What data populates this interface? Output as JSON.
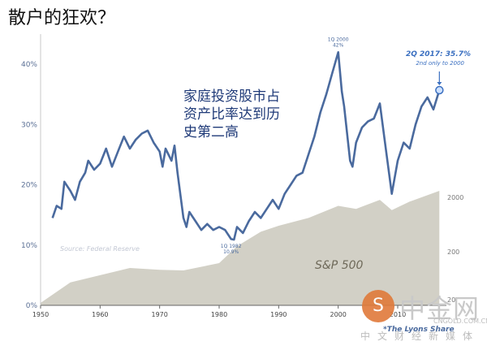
{
  "title": "散户的狂欢？",
  "annotation": [
    "家庭投资股市占",
    "资产比率达到历",
    "史第二高"
  ],
  "watermark": {
    "logo_char": "S",
    "name": "中金网",
    "url": "CNGOLD.COM.CN",
    "subtitle": "中文财经新媒体"
  },
  "chart_data": {
    "type": "line",
    "xlim": [
      1950,
      2017.5
    ],
    "x_ticks": [
      1950,
      1960,
      1970,
      1980,
      1990,
      2000,
      2010
    ],
    "ylim": [
      0,
      45
    ],
    "y_ticks": [
      {
        "v": 0,
        "label": "0%"
      },
      {
        "v": 10,
        "label": "10%"
      },
      {
        "v": 20,
        "label": "20%"
      },
      {
        "v": 30,
        "label": "30%"
      },
      {
        "v": 40,
        "label": "40%"
      }
    ],
    "y2_ticks": [
      {
        "v": 2000,
        "label": "2000"
      },
      {
        "v": 200,
        "label": "200"
      },
      {
        "v": 20,
        "label": "20"
      }
    ],
    "source": "Source: Federal Reserve",
    "credit": "*The Lyons Share",
    "colors": {
      "line": "#4a6a9e",
      "area": "#d2d0c6",
      "axis": "#666666",
      "source": "#c3c8d4",
      "highlight": "#3a6fc0"
    },
    "series": [
      {
        "name": "",
        "values": [
          [
            1952,
            14.5
          ],
          [
            1952.7,
            16.5
          ],
          [
            1953.5,
            16
          ],
          [
            1954,
            20.5
          ],
          [
            1955,
            19
          ],
          [
            1955.8,
            17.5
          ],
          [
            1956.6,
            20.5
          ],
          [
            1957.5,
            22
          ],
          [
            1958,
            24
          ],
          [
            1959,
            22.5
          ],
          [
            1960,
            23.5
          ],
          [
            1961,
            26
          ],
          [
            1962,
            23
          ],
          [
            1963,
            25.5
          ],
          [
            1964,
            28
          ],
          [
            1965,
            26
          ],
          [
            1966,
            27.5
          ],
          [
            1967,
            28.5
          ],
          [
            1968,
            29
          ],
          [
            1969,
            27
          ],
          [
            1970,
            25.5
          ],
          [
            1970.5,
            23
          ],
          [
            1971,
            26
          ],
          [
            1972,
            24
          ],
          [
            1972.5,
            26.5
          ],
          [
            1973,
            22
          ],
          [
            1974,
            14.5
          ],
          [
            1974.5,
            13
          ],
          [
            1975,
            15.5
          ],
          [
            1976,
            14
          ],
          [
            1977,
            12.5
          ],
          [
            1978,
            13.5
          ],
          [
            1979,
            12.5
          ],
          [
            1980,
            13
          ],
          [
            1981,
            12.5
          ],
          [
            1982,
            11
          ],
          [
            1982.5,
            10.9
          ],
          [
            1983,
            13
          ],
          [
            1984,
            12
          ],
          [
            1985,
            14
          ],
          [
            1986,
            15.5
          ],
          [
            1987,
            14.5
          ],
          [
            1988,
            16
          ],
          [
            1989,
            17.5
          ],
          [
            1990,
            16
          ],
          [
            1991,
            18.5
          ],
          [
            1992,
            20
          ],
          [
            1993,
            21.5
          ],
          [
            1994,
            22
          ],
          [
            1995,
            25
          ],
          [
            1996,
            28
          ],
          [
            1997,
            32
          ],
          [
            1998,
            35
          ],
          [
            1999,
            38.5
          ],
          [
            2000,
            42
          ],
          [
            2000.6,
            35.5
          ],
          [
            2001,
            33
          ],
          [
            2002,
            24
          ],
          [
            2002.4,
            23
          ],
          [
            2003,
            27
          ],
          [
            2004,
            29.5
          ],
          [
            2005,
            30.5
          ],
          [
            2006,
            31
          ],
          [
            2007,
            33.5
          ],
          [
            2008,
            26
          ],
          [
            2009,
            18.5
          ],
          [
            2010,
            24
          ],
          [
            2011,
            27
          ],
          [
            2012,
            26
          ],
          [
            2013,
            30
          ],
          [
            2014,
            33
          ],
          [
            2015,
            34.5
          ],
          [
            2016,
            32.5
          ],
          [
            2017,
            35.7
          ]
        ]
      }
    ],
    "sp500": {
      "name": "S&P 500",
      "values": [
        [
          1950,
          0.4
        ],
        [
          1955,
          3.8
        ],
        [
          1960,
          5
        ],
        [
          1965,
          6.2
        ],
        [
          1970,
          5.9
        ],
        [
          1974,
          5.8
        ],
        [
          1980,
          7
        ],
        [
          1983,
          9.8
        ],
        [
          1987,
          12.2
        ],
        [
          1990,
          13.2
        ],
        [
          1995,
          14.5
        ],
        [
          2000,
          16.5
        ],
        [
          2003,
          16
        ],
        [
          2007,
          17.5
        ],
        [
          2009,
          15.8
        ],
        [
          2012,
          17.2
        ],
        [
          2017,
          19
        ]
      ]
    },
    "labels": [
      {
        "x": 1982,
        "y": 10.9,
        "text": "1Q 1982",
        "text2": "10.9%",
        "pos": "below"
      },
      {
        "x": 2000,
        "y": 42,
        "text": "1Q 2000",
        "text2": "42%",
        "pos": "above"
      }
    ],
    "callout": {
      "title": "2Q 2017: 35.7%",
      "sub": "2nd only to 2000"
    }
  }
}
